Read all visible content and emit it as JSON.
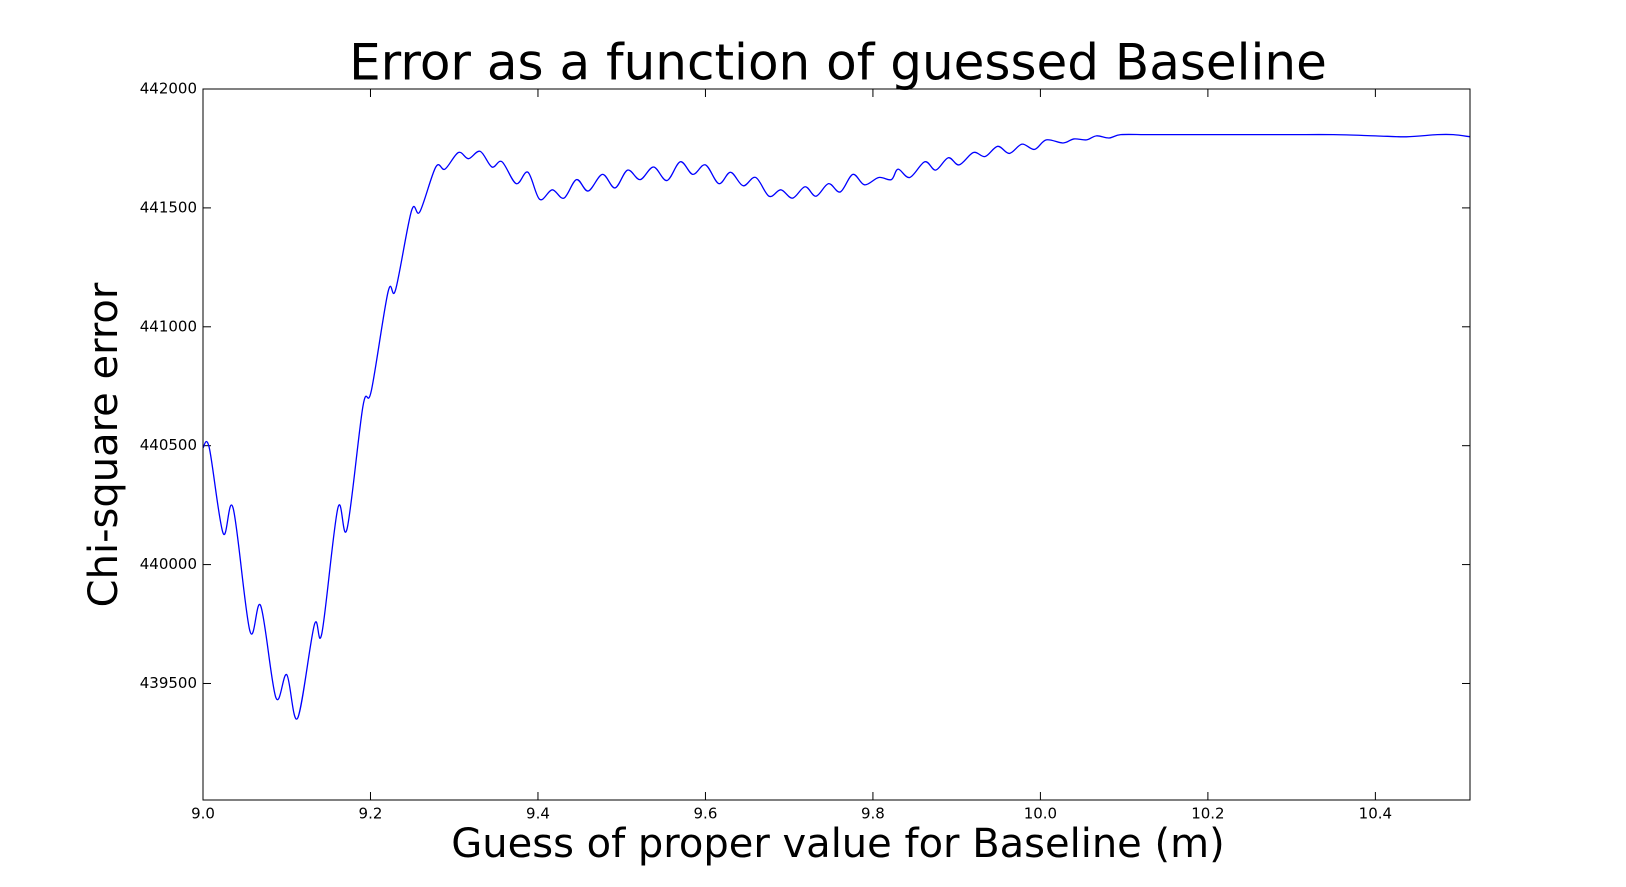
{
  "chart_data": {
    "type": "line",
    "title": "Error as a function of guessed Baseline",
    "x_label": "Guess of proper value for Baseline (m)",
    "y_label": "Chi-square error",
    "xlim": [
      9.0,
      10.513
    ],
    "ylim": [
      439010,
      442000
    ],
    "xticks": [
      {
        "value": 9.0,
        "label": "9.0"
      },
      9.2,
      9.4,
      9.6,
      9.8,
      {
        "value": 10.0,
        "label": "10.0"
      },
      10.2,
      10.4
    ],
    "yticks": [
      439500,
      440000,
      440500,
      441000,
      441500,
      442000
    ],
    "grid": false,
    "series": [
      {
        "name": "Chi-square error",
        "color": "#0000ff",
        "x": [
          9.0,
          9.0075,
          9.024,
          9.036,
          9.056,
          9.069,
          9.087,
          9.1,
          9.113,
          9.133,
          9.142,
          9.161,
          9.172,
          9.191,
          9.201,
          9.221,
          9.23,
          9.249,
          9.259,
          9.278,
          9.289,
          9.305,
          9.317,
          9.331,
          9.345,
          9.357,
          9.374,
          9.388,
          9.402,
          9.417,
          9.431,
          9.446,
          9.46,
          9.477,
          9.492,
          9.507,
          9.522,
          9.538,
          9.554,
          9.57,
          9.585,
          9.6,
          9.616,
          9.63,
          9.645,
          9.66,
          9.676,
          9.69,
          9.704,
          9.719,
          9.732,
          9.747,
          9.761,
          9.776,
          9.79,
          9.807,
          9.822,
          9.83,
          9.844,
          9.862,
          9.875,
          9.89,
          9.903,
          9.92,
          9.934,
          9.949,
          9.963,
          9.978,
          9.993,
          10.007,
          10.027,
          10.04,
          10.055,
          10.067,
          10.082,
          10.096,
          10.127,
          10.164,
          10.2,
          10.25,
          10.3,
          10.35,
          10.4,
          10.437,
          10.474,
          10.493,
          10.513
        ],
        "values": [
          440491,
          440491,
          440132,
          440237,
          439721,
          439826,
          439441,
          439537,
          439354,
          439747,
          439712,
          440237,
          440150,
          440666,
          440731,
          441147,
          441156,
          441488,
          441484,
          441672,
          441663,
          441733,
          441707,
          441738,
          441672,
          441694,
          441602,
          441650,
          441536,
          441576,
          441541,
          441619,
          441571,
          441641,
          441584,
          441659,
          441619,
          441672,
          441615,
          441694,
          441641,
          441681,
          441602,
          441650,
          441593,
          441628,
          441549,
          441576,
          441541,
          441589,
          441549,
          441602,
          441567,
          441641,
          441597,
          441628,
          441619,
          441663,
          441628,
          441694,
          441659,
          441711,
          441681,
          441733,
          441716,
          441759,
          441729,
          441768,
          441746,
          441786,
          441773,
          441790,
          441786,
          441803,
          441794,
          441808,
          441808,
          441808,
          441808,
          441808,
          441808,
          441808,
          441803,
          441799,
          441808,
          441808,
          441799
        ]
      }
    ]
  }
}
